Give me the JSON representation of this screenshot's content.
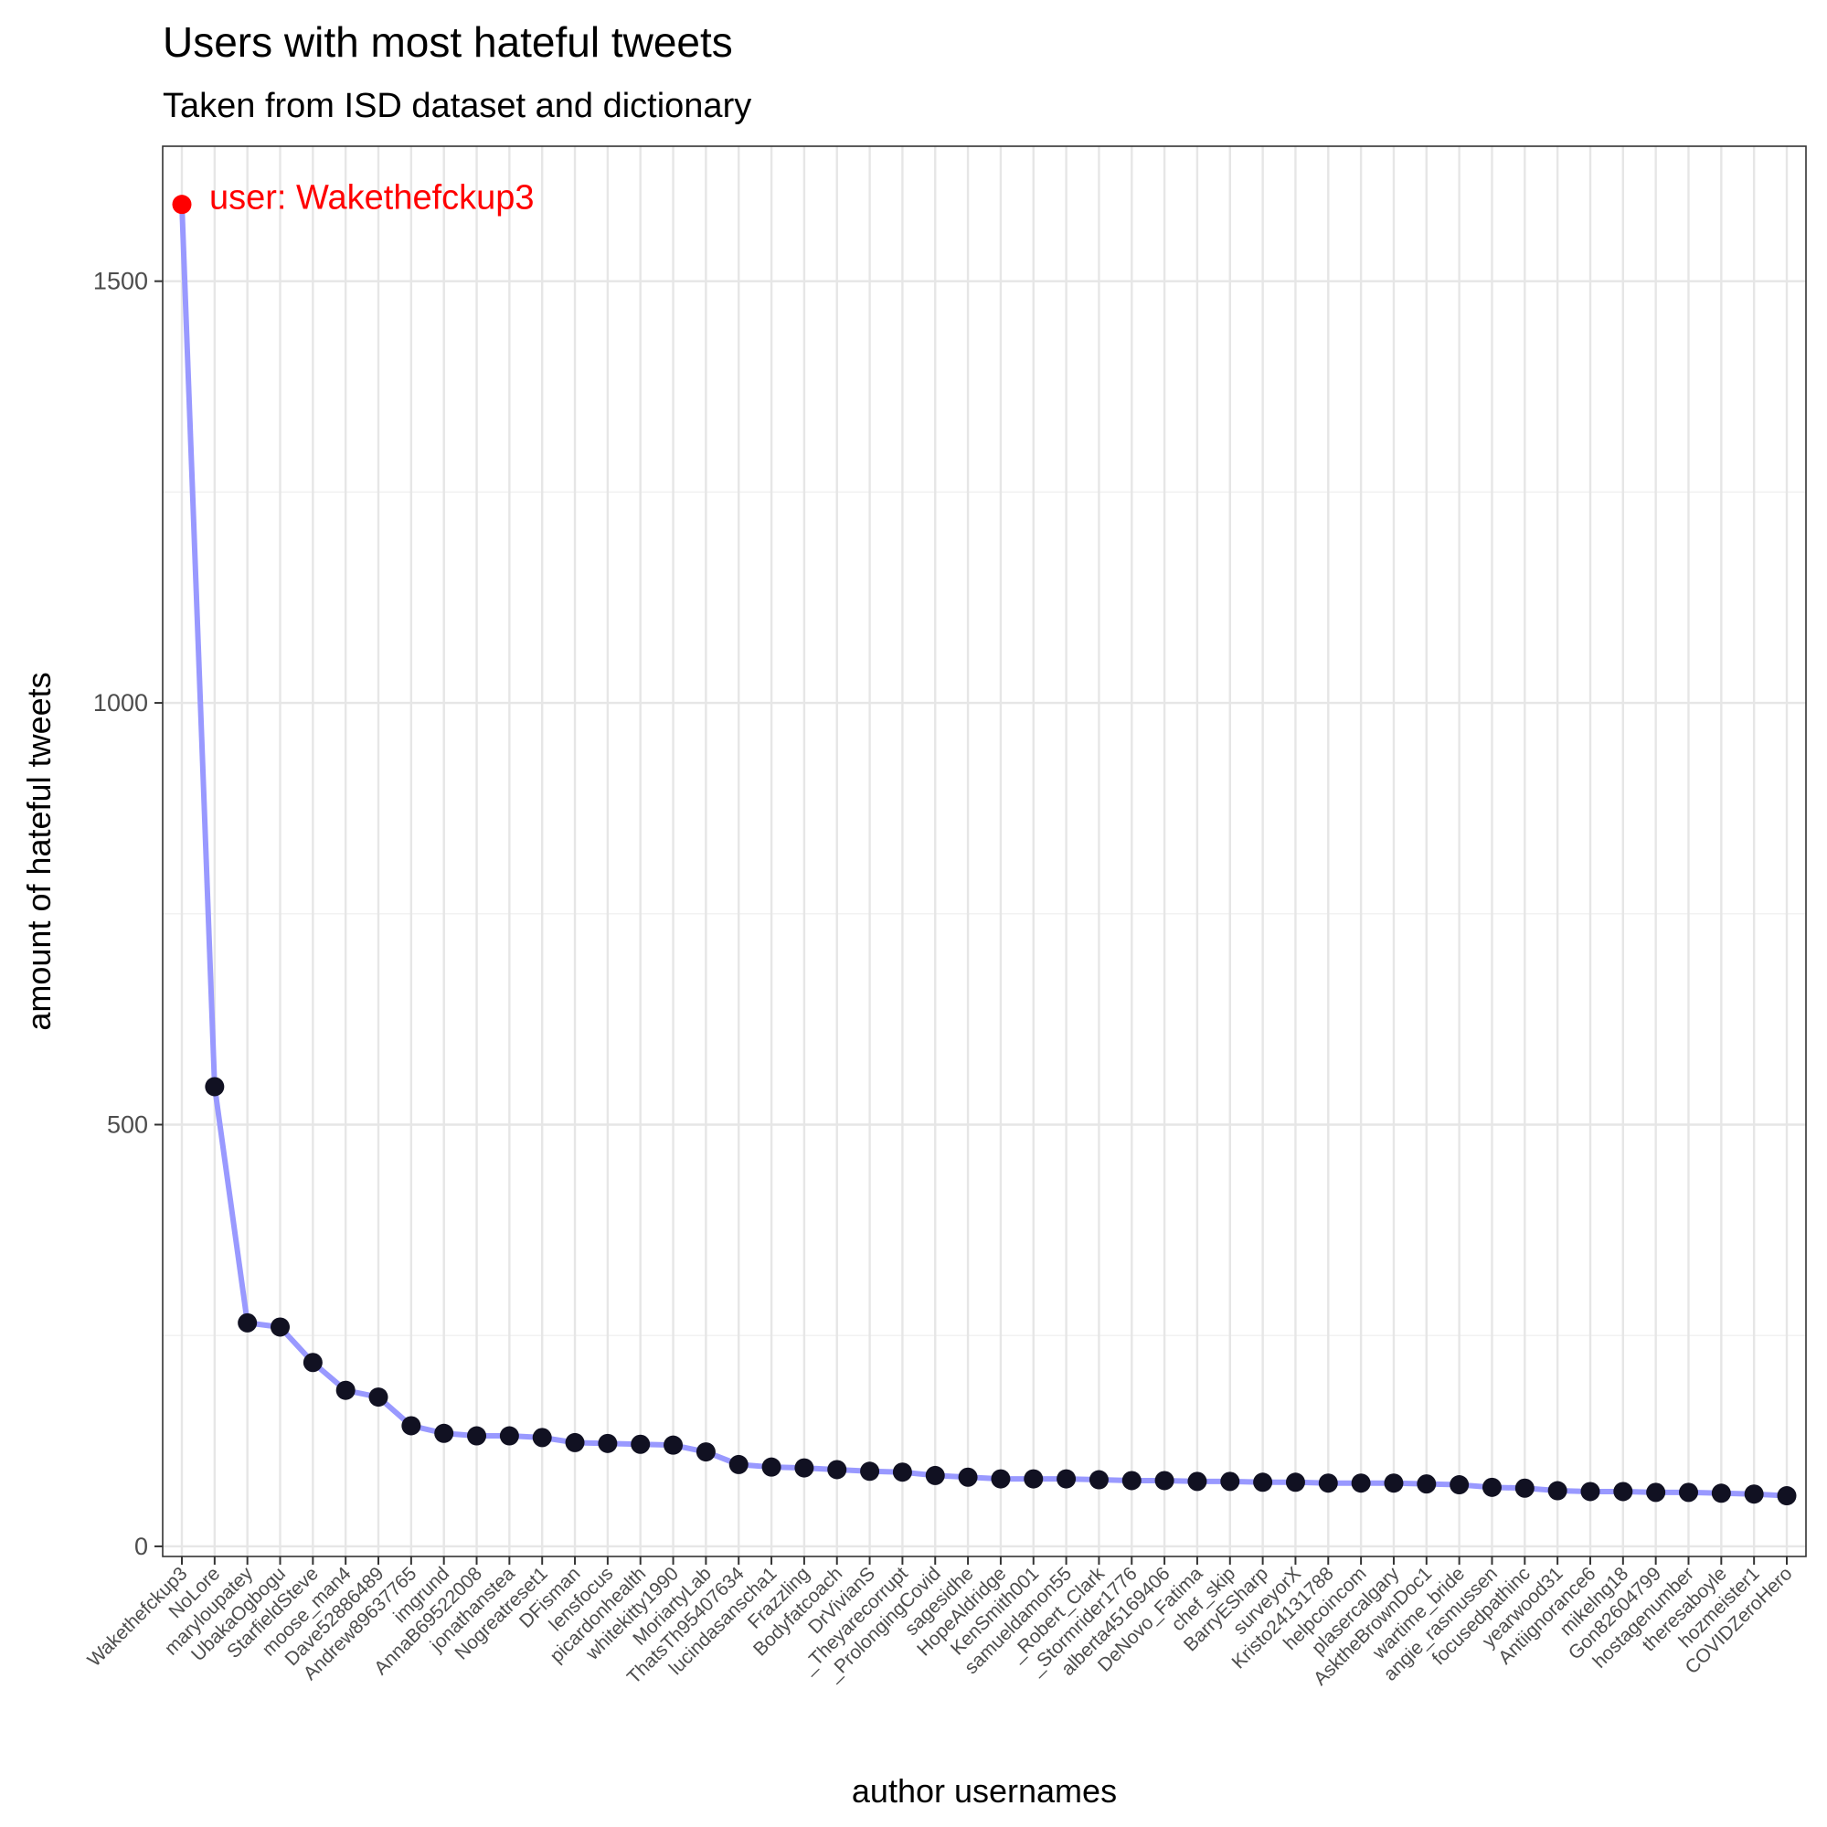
{
  "chart_data": {
    "type": "line",
    "title": "Users with most hateful tweets",
    "subtitle": "Taken from ISD dataset and dictionary",
    "xlabel": "author usernames",
    "ylabel": "amount of hateful tweets",
    "ylim": [
      -12,
      1660
    ],
    "yticks": [
      0,
      500,
      1000,
      1500
    ],
    "yticks_minor": [
      250,
      750,
      1250
    ],
    "grid": true,
    "line_color": "#9999ff",
    "point_color": "#111122",
    "highlight_color": "#ff0000",
    "annotation": {
      "text": "user: Wakethefckup3",
      "index": 0
    },
    "categories": [
      "Wakethefckup3",
      "NoLore",
      "maryloupatey",
      "UbakaOgbogu",
      "StarfieldSteve",
      "moose_man4",
      "Dave52886489",
      "Andrew89637765",
      "imgrund",
      "AnnaB69522008",
      "jonathanstea",
      "Nogreatreset1",
      "DFisman",
      "lensfocus",
      "picardonhealth",
      "whitekitty1990",
      "MoriartyLab",
      "ThatsTh95407634",
      "lucindasanscha1",
      "Frazzling",
      "Bodyfatcoach",
      "DrVivianS",
      "_Theyarecorrupt",
      "_ProlongingCovid",
      "sagesidhe",
      "HopeAldridge",
      "KenSmith001",
      "samueldamon55",
      "_Robert_Clark",
      "_Stormrider1776",
      "alberta45169406",
      "DeNovo_Fatima",
      "chef_skip",
      "BarryESharp",
      "surveyorX",
      "Kristo24131788",
      "helpcoincom",
      "plasercalgary",
      "AsktheBrownDoc1",
      "wartime_bride",
      "angie_rasmussen",
      "focusedpathinc",
      "yearwood31",
      "Antiignorance6",
      "mikelng18",
      "Gon82604799",
      "hostagenumber",
      "theresaboyle",
      "hozmeister1",
      "COVIDZeroHero"
    ],
    "values": [
      1591,
      545,
      265,
      260,
      218,
      185,
      177,
      143,
      134,
      131,
      131,
      129,
      123,
      122,
      121,
      120,
      112,
      97,
      94,
      93,
      91,
      89,
      88,
      84,
      82,
      80,
      80,
      80,
      79,
      78,
      78,
      77,
      77,
      76,
      76,
      75,
      75,
      75,
      74,
      73,
      70,
      69,
      66,
      65,
      65,
      64,
      64,
      63,
      62,
      60
    ]
  }
}
